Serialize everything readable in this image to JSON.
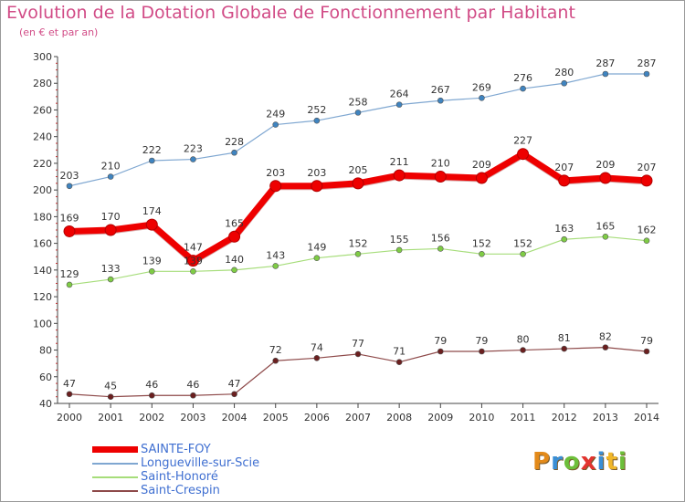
{
  "title": "Evolution de la Dotation Globale de Fonctionnement par Habitant",
  "subtitle": "(en € et par an)",
  "logo": {
    "text": "Proxiti",
    "letters": [
      "P",
      "r",
      "o",
      "x",
      "i",
      "t",
      "i"
    ],
    "colors": [
      "#e38a1a",
      "#3a8fd6",
      "#6dbf3a",
      "#e3342f",
      "#3a8fd6",
      "#f0b72a",
      "#6dbf3a"
    ]
  },
  "chart_data": {
    "type": "line",
    "x": [
      "2000",
      "2001",
      "2002",
      "2003",
      "2004",
      "2005",
      "2006",
      "2007",
      "2008",
      "2009",
      "2010",
      "2011",
      "2012",
      "2013",
      "2014"
    ],
    "ylim": [
      40,
      300
    ],
    "yticks": [
      "40",
      "60",
      "80",
      "100",
      "120",
      "140",
      "160",
      "180",
      "200",
      "220",
      "240",
      "260",
      "280",
      "300"
    ],
    "grid": false,
    "legend_position": "bottom-left",
    "series": [
      {
        "name": "Longueville-sur-Scie",
        "color": "#7fa7d1",
        "marker": "#3f84c0",
        "width": 1.2,
        "values": [
          203,
          210,
          222,
          223,
          228,
          249,
          252,
          258,
          264,
          267,
          269,
          276,
          280,
          287,
          287
        ],
        "labels": [
          "203",
          "210",
          "222",
          "223",
          "228",
          "249",
          "252",
          "258",
          "264",
          "267",
          "269",
          "276",
          "280",
          "287",
          "287"
        ]
      },
      {
        "name": "Saint-Honoré",
        "color": "#a6dd7a",
        "marker": "#7fcc45",
        "width": 1.2,
        "values": [
          129,
          133,
          139,
          139,
          140,
          143,
          149,
          152,
          155,
          156,
          152,
          152,
          163,
          165,
          162
        ],
        "labels": [
          "129",
          "133",
          "139",
          "139",
          "140",
          "143",
          "149",
          "152",
          "155",
          "156",
          "152",
          "152",
          "163",
          "165",
          "162"
        ]
      },
      {
        "name": "Saint-Crespin",
        "color": "#8e4a4a",
        "marker": "#6b1f1f",
        "width": 1.2,
        "values": [
          47,
          45,
          46,
          46,
          47,
          72,
          74,
          77,
          71,
          79,
          79,
          80,
          81,
          82,
          79
        ],
        "labels": [
          "47",
          "45",
          "46",
          "46",
          "47",
          "72",
          "74",
          "77",
          "71",
          "79",
          "79",
          "80",
          "81",
          "82",
          "79"
        ]
      },
      {
        "name": "SAINTE-FOY",
        "color": "#ee0000",
        "marker": "#ee0000",
        "width": 7,
        "values": [
          169,
          170,
          174,
          147,
          165,
          203,
          203,
          205,
          211,
          210,
          209,
          227,
          207,
          209,
          207
        ],
        "labels": [
          "169",
          "170",
          "174",
          "147",
          "165",
          "203",
          "203",
          "205",
          "211",
          "210",
          "209",
          "227",
          "207",
          "209",
          "207"
        ]
      }
    ]
  },
  "legend": [
    {
      "name": "SAINTE-FOY",
      "color": "#ee0000",
      "thickness": 7,
      "text_color": "#3f6fd1"
    },
    {
      "name": "Longueville-sur-Scie",
      "color": "#7fa7d1",
      "thickness": 2,
      "text_color": "#3f6fd1"
    },
    {
      "name": "Saint-Honoré",
      "color": "#a6dd7a",
      "thickness": 2,
      "text_color": "#3f6fd1"
    },
    {
      "name": "Saint-Crespin",
      "color": "#8e4a4a",
      "thickness": 2,
      "text_color": "#3f6fd1"
    }
  ]
}
